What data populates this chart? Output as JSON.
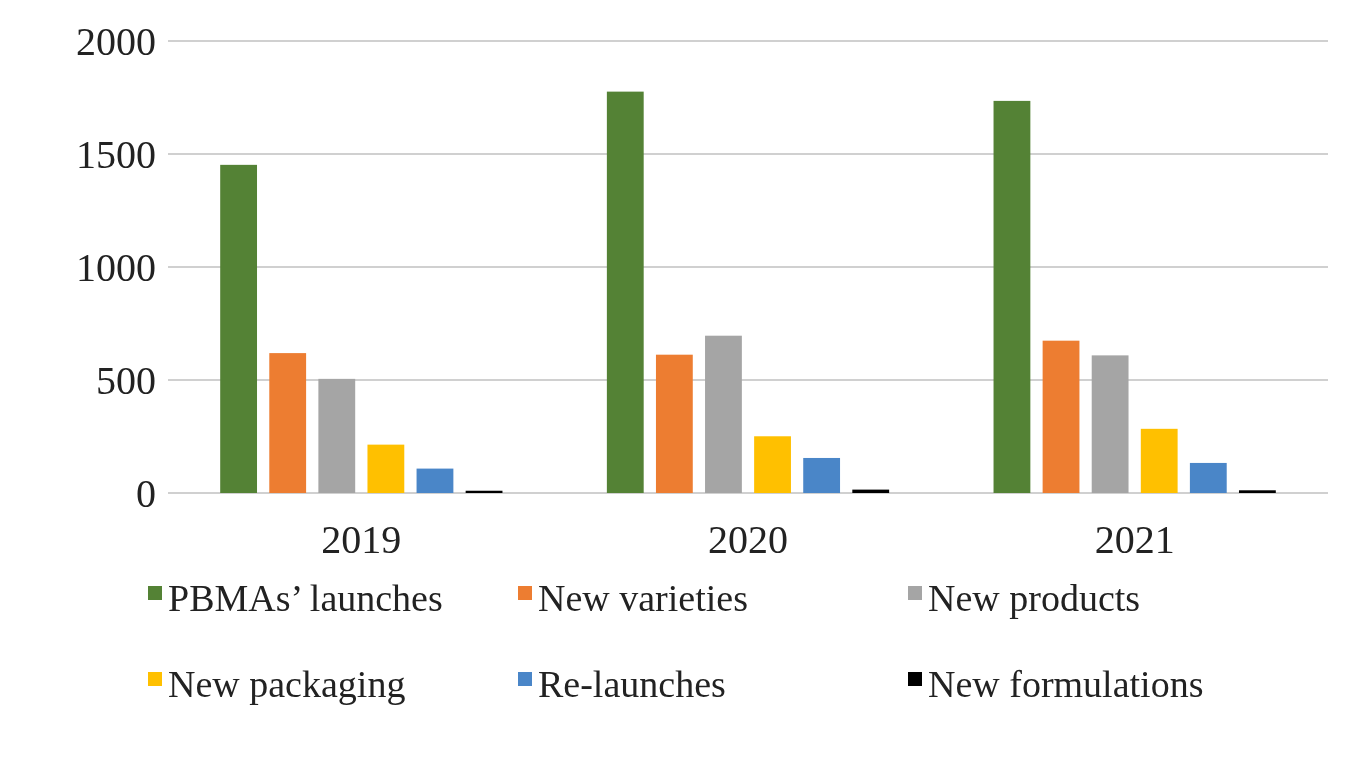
{
  "chart_data": {
    "type": "bar",
    "categories": [
      "2019",
      "2020",
      "2021"
    ],
    "series": [
      {
        "name": "PBMAs’ launches",
        "color": "#548235",
        "values": [
          1452,
          1776,
          1735
        ]
      },
      {
        "name": "New varieties",
        "color": "#ed7d31",
        "values": [
          619,
          612,
          674
        ]
      },
      {
        "name": "New products",
        "color": "#a5a5a5",
        "values": [
          505,
          696,
          609
        ]
      },
      {
        "name": "New packaging",
        "color": "#ffc000",
        "values": [
          214,
          251,
          284
        ]
      },
      {
        "name": "Re-launches",
        "color": "#4a86c8",
        "values": [
          108,
          155,
          133
        ]
      },
      {
        "name": "New formulations",
        "color": "#000000",
        "values": [
          10,
          15,
          12
        ]
      }
    ],
    "ylim": [
      0,
      2000
    ],
    "yticks": [
      0,
      500,
      1000,
      1500,
      2000
    ],
    "grid": "y",
    "legend": "bottom"
  }
}
